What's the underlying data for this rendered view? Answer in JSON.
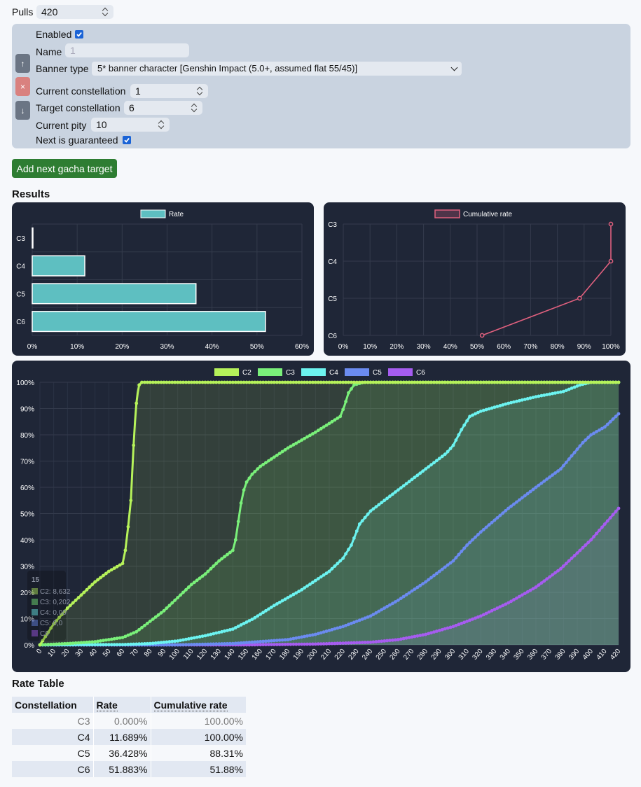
{
  "pulls": {
    "label": "Pulls",
    "value": "420"
  },
  "target": {
    "enabled_label": "Enabled",
    "enabled": true,
    "name_label": "Name",
    "name_placeholder": "1",
    "banner_label": "Banner type",
    "banner_value": "5* banner character [Genshin Impact (5.0+, assumed flat 55/45)]",
    "cur_const_label": "Current constellation",
    "cur_const_value": "1",
    "target_const_label": "Target constellation",
    "target_const_value": "6",
    "pity_label": "Current pity",
    "pity_value": "10",
    "guaranteed_label": "Next is guaranteed",
    "guaranteed": true,
    "move_up_label": "↑",
    "remove_label": "×",
    "move_down_label": "↓"
  },
  "add_button_label": "Add next gacha target",
  "results_heading": "Results",
  "rate_table_heading": "Rate Table",
  "colors": {
    "rate": "#5ebfc1",
    "cumulative": "#e0607e",
    "C2": "#b6f25a",
    "C3": "#7af07a",
    "C4": "#6cf3f0",
    "C5": "#6b8bf0",
    "C6": "#a65cf0"
  },
  "chart_data": [
    {
      "type": "bar",
      "orientation": "horizontal",
      "categories": [
        "C3",
        "C4",
        "C5",
        "C6"
      ],
      "series": [
        {
          "name": "Rate",
          "values": [
            0.0,
            11.689,
            36.428,
            51.883
          ]
        }
      ],
      "xlim": [
        0,
        60
      ],
      "xticks": [
        "0%",
        "10%",
        "20%",
        "30%",
        "40%",
        "50%",
        "60%"
      ],
      "legend": "top"
    },
    {
      "type": "line",
      "categories": [
        "C3",
        "C4",
        "C5",
        "C6"
      ],
      "series": [
        {
          "name": "Cumulative rate",
          "values": [
            100.0,
            100.0,
            88.31,
            51.88
          ]
        }
      ],
      "xlim": [
        0,
        100
      ],
      "xticks": [
        "0%",
        "10%",
        "20%",
        "30%",
        "40%",
        "50%",
        "60%",
        "70%",
        "80%",
        "90%",
        "100%"
      ],
      "legend": "top"
    },
    {
      "type": "area",
      "xlim": [
        0,
        420
      ],
      "ylim": [
        0,
        100
      ],
      "yticks": [
        "0%",
        "10%",
        "20%",
        "30%",
        "40%",
        "50%",
        "60%",
        "70%",
        "80%",
        "90%",
        "100%"
      ],
      "x_step": 10,
      "legend": "top",
      "series": [
        {
          "name": "C2",
          "points": [
            [
              0,
              0
            ],
            [
              10,
              8
            ],
            [
              20,
              14
            ],
            [
              30,
              19
            ],
            [
              40,
              24
            ],
            [
              50,
              28
            ],
            [
              60,
              31
            ],
            [
              62,
              36
            ],
            [
              64,
              45
            ],
            [
              66,
              55
            ],
            [
              67,
              66
            ],
            [
              68,
              76
            ],
            [
              69,
              85
            ],
            [
              70,
              92
            ],
            [
              71,
              96
            ],
            [
              72,
              99
            ],
            [
              74,
              100
            ],
            [
              420,
              100
            ]
          ]
        },
        {
          "name": "C3",
          "points": [
            [
              0,
              0
            ],
            [
              20,
              0.5
            ],
            [
              40,
              1.2
            ],
            [
              60,
              2.8
            ],
            [
              70,
              5
            ],
            [
              80,
              9
            ],
            [
              90,
              13
            ],
            [
              100,
              18
            ],
            [
              110,
              23
            ],
            [
              120,
              27
            ],
            [
              130,
              32
            ],
            [
              140,
              36
            ],
            [
              142,
              40
            ],
            [
              144,
              47
            ],
            [
              146,
              54
            ],
            [
              148,
              59
            ],
            [
              150,
              62
            ],
            [
              154,
              65
            ],
            [
              160,
              68
            ],
            [
              180,
              75
            ],
            [
              200,
              81
            ],
            [
              212,
              85
            ],
            [
              218,
              87
            ],
            [
              221,
              91
            ],
            [
              224,
              96
            ],
            [
              228,
              99
            ],
            [
              235,
              100
            ],
            [
              420,
              100
            ]
          ]
        },
        {
          "name": "C4",
          "points": [
            [
              0,
              0
            ],
            [
              60,
              0.1
            ],
            [
              80,
              0.5
            ],
            [
              100,
              1.5
            ],
            [
              120,
              3.5
            ],
            [
              140,
              6
            ],
            [
              155,
              10
            ],
            [
              170,
              15
            ],
            [
              190,
              21
            ],
            [
              210,
              28
            ],
            [
              220,
              33
            ],
            [
              226,
              38
            ],
            [
              232,
              46
            ],
            [
              240,
              51
            ],
            [
              260,
              59
            ],
            [
              280,
              67
            ],
            [
              295,
              73
            ],
            [
              300,
              76
            ],
            [
              306,
              82
            ],
            [
              312,
              87
            ],
            [
              320,
              89
            ],
            [
              340,
              92
            ],
            [
              360,
              94.5
            ],
            [
              380,
              96.5
            ],
            [
              392,
              99
            ],
            [
              400,
              100
            ],
            [
              420,
              100
            ]
          ]
        },
        {
          "name": "C5",
          "points": [
            [
              0,
              0
            ],
            [
              100,
              0
            ],
            [
              140,
              0.5
            ],
            [
              180,
              2
            ],
            [
              200,
              4
            ],
            [
              220,
              7
            ],
            [
              240,
              11
            ],
            [
              260,
              17
            ],
            [
              280,
              24
            ],
            [
              300,
              32
            ],
            [
              310,
              38
            ],
            [
              320,
              43
            ],
            [
              340,
              52
            ],
            [
              360,
              60
            ],
            [
              378,
              67
            ],
            [
              386,
              72
            ],
            [
              394,
              77
            ],
            [
              400,
              80
            ],
            [
              410,
              83
            ],
            [
              420,
              88
            ]
          ]
        },
        {
          "name": "C6",
          "points": [
            [
              0,
              0
            ],
            [
              150,
              0
            ],
            [
              200,
              0.3
            ],
            [
              240,
              1
            ],
            [
              260,
              2
            ],
            [
              280,
              4
            ],
            [
              300,
              7
            ],
            [
              320,
              11
            ],
            [
              340,
              16
            ],
            [
              360,
              22
            ],
            [
              378,
              29
            ],
            [
              390,
              35
            ],
            [
              400,
              40
            ],
            [
              410,
              46
            ],
            [
              420,
              52
            ]
          ]
        }
      ],
      "tooltip": {
        "title": "15",
        "items": [
          "C2: 8,632",
          "C3: 0,202",
          "C4: 0,00",
          "C5: 0,0",
          "C6"
        ]
      }
    }
  ],
  "rate_table": {
    "headers": [
      "Constellation",
      "Rate",
      "Cumulative rate"
    ],
    "rows": [
      {
        "const": "C3",
        "rate": "0.000%",
        "cum": "100.00%"
      },
      {
        "const": "C4",
        "rate": "11.689%",
        "cum": "100.00%"
      },
      {
        "const": "C5",
        "rate": "36.428%",
        "cum": "88.31%"
      },
      {
        "const": "C6",
        "rate": "51.883%",
        "cum": "51.88%"
      }
    ]
  }
}
